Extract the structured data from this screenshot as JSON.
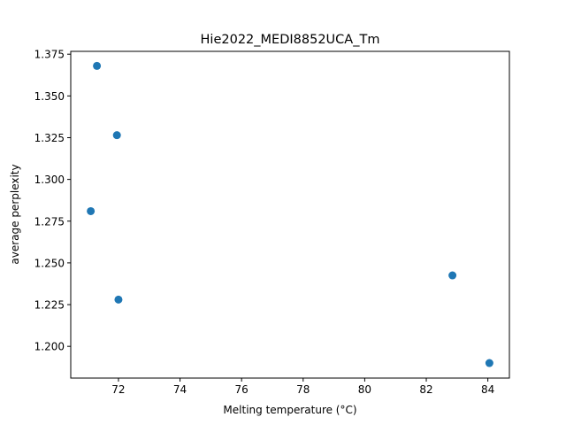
{
  "chart_data": {
    "type": "scatter",
    "title": "Hie2022_MEDI8852UCA_Tm",
    "xlabel": "Melting temperature (°C)",
    "ylabel": "average perplexity",
    "xlim": [
      70.45,
      84.7
    ],
    "ylim": [
      1.181,
      1.3767
    ],
    "xticks": [
      72,
      74,
      76,
      78,
      80,
      82,
      84
    ],
    "xtick_labels": [
      "72",
      "74",
      "76",
      "78",
      "80",
      "82",
      "84"
    ],
    "yticks": [
      1.2,
      1.225,
      1.25,
      1.275,
      1.3,
      1.325,
      1.35,
      1.375
    ],
    "ytick_labels": [
      "1.200",
      "1.225",
      "1.250",
      "1.275",
      "1.300",
      "1.325",
      "1.350",
      "1.375"
    ],
    "grid": false,
    "marker_color": "#1f77b4",
    "points": [
      {
        "x": 71.3,
        "y": 1.368
      },
      {
        "x": 71.95,
        "y": 1.3265
      },
      {
        "x": 71.1,
        "y": 1.281
      },
      {
        "x": 72.0,
        "y": 1.228
      },
      {
        "x": 82.85,
        "y": 1.2425
      },
      {
        "x": 84.05,
        "y": 1.19
      }
    ]
  }
}
